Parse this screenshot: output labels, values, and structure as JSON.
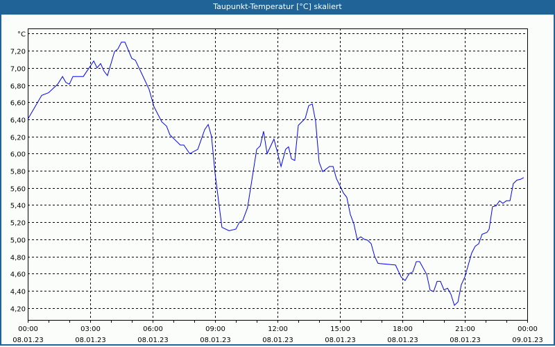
{
  "window": {
    "title": "Taupunkt-Temperatur [°C] skaliert"
  },
  "colors": {
    "titlebar": "#1f6397",
    "line": "#0000ff",
    "grid": "#000000",
    "background": "#fbfdfb"
  },
  "chart_data": {
    "type": "line",
    "title": "Taupunkt-Temperatur [°C] skaliert",
    "ylabel": "°C",
    "xlabel": "",
    "ylim": [
      4.06,
      7.46
    ],
    "xlim_hours": [
      0,
      24
    ],
    "grid": true,
    "y_ticks": [
      "4,20",
      "4,40",
      "4,60",
      "4,80",
      "5,00",
      "5,20",
      "5,40",
      "5,60",
      "5,80",
      "6,00",
      "6,20",
      "6,40",
      "6,60",
      "6,80",
      "7,00",
      "7,20"
    ],
    "y_tick_values": [
      4.2,
      4.4,
      4.6,
      4.8,
      5.0,
      5.2,
      5.4,
      5.6,
      5.8,
      6.0,
      6.2,
      6.4,
      6.6,
      6.8,
      7.0,
      7.2
    ],
    "y_unit_value": 7.4,
    "x_ticks": [
      {
        "hour": 0,
        "time": "00:00",
        "date": "08.01.23"
      },
      {
        "hour": 3,
        "time": "03:00",
        "date": "08.01.23"
      },
      {
        "hour": 6,
        "time": "06:00",
        "date": "08.01.23"
      },
      {
        "hour": 9,
        "time": "09:00",
        "date": "08.01.23"
      },
      {
        "hour": 12,
        "time": "12:00",
        "date": "08.01.23"
      },
      {
        "hour": 15,
        "time": "15:00",
        "date": "08.01.23"
      },
      {
        "hour": 18,
        "time": "18:00",
        "date": "08.01.23"
      },
      {
        "hour": 21,
        "time": "21:00",
        "date": "08.01.23"
      },
      {
        "hour": 24,
        "time": "00:00",
        "date": "09.01.23"
      }
    ],
    "series": [
      {
        "name": "Taupunkt-Temperatur",
        "x_hours": [
          0,
          0.67,
          1.0,
          1.44,
          1.67,
          1.83,
          2.0,
          2.17,
          2.67,
          3.17,
          3.33,
          3.5,
          3.67,
          3.83,
          4.17,
          4.33,
          4.5,
          4.67,
          5.0,
          5.17,
          5.56,
          5.83,
          6.06,
          6.44,
          6.67,
          6.83,
          7.33,
          7.5,
          7.78,
          8.17,
          8.5,
          8.67,
          8.83,
          9.0,
          9.33,
          9.67,
          10.0,
          10.17,
          10.33,
          10.56,
          11.0,
          11.17,
          11.33,
          11.5,
          11.83,
          12.17,
          12.39,
          12.53,
          12.67,
          12.83,
          13.0,
          13.33,
          13.5,
          13.67,
          13.83,
          14.0,
          14.17,
          14.5,
          14.67,
          14.83,
          15.17,
          15.33,
          15.5,
          15.67,
          15.83,
          16.0,
          16.17,
          16.33,
          16.5,
          16.67,
          16.83,
          17.67,
          17.94,
          18.13,
          18.33,
          18.5,
          18.67,
          18.83,
          19.17,
          19.33,
          19.5,
          19.67,
          19.83,
          20.0,
          20.17,
          20.33,
          20.5,
          20.67,
          20.83,
          21.0,
          21.33,
          21.5,
          21.67,
          21.83,
          22.06,
          22.17,
          22.33,
          22.5,
          22.67,
          22.83,
          23.0,
          23.17,
          23.33,
          23.5,
          23.67,
          23.83
        ],
        "values": [
          6.4,
          6.68,
          6.71,
          6.81,
          6.9,
          6.83,
          6.81,
          6.9,
          6.9,
          7.08,
          7.0,
          7.05,
          6.96,
          6.91,
          7.19,
          7.22,
          7.3,
          7.3,
          7.11,
          7.09,
          6.89,
          6.75,
          6.55,
          6.37,
          6.32,
          6.22,
          6.1,
          6.1,
          6.0,
          6.05,
          6.28,
          6.34,
          6.2,
          5.77,
          5.14,
          5.1,
          5.12,
          5.2,
          5.22,
          5.37,
          6.05,
          6.09,
          6.26,
          6.0,
          6.17,
          5.85,
          6.05,
          6.08,
          5.94,
          5.92,
          6.33,
          6.41,
          6.56,
          6.58,
          6.38,
          5.9,
          5.79,
          5.85,
          5.85,
          5.71,
          5.54,
          5.49,
          5.29,
          5.18,
          5.0,
          5.03,
          5.0,
          4.99,
          4.95,
          4.8,
          4.72,
          4.7,
          4.56,
          4.52,
          4.6,
          4.62,
          4.74,
          4.74,
          4.59,
          4.41,
          4.39,
          4.51,
          4.51,
          4.41,
          4.43,
          4.36,
          4.23,
          4.27,
          4.47,
          4.56,
          4.84,
          4.92,
          4.95,
          5.06,
          5.08,
          5.12,
          5.38,
          5.39,
          5.45,
          5.42,
          5.45,
          5.45,
          5.65,
          5.69,
          5.7,
          5.72
        ]
      }
    ]
  }
}
